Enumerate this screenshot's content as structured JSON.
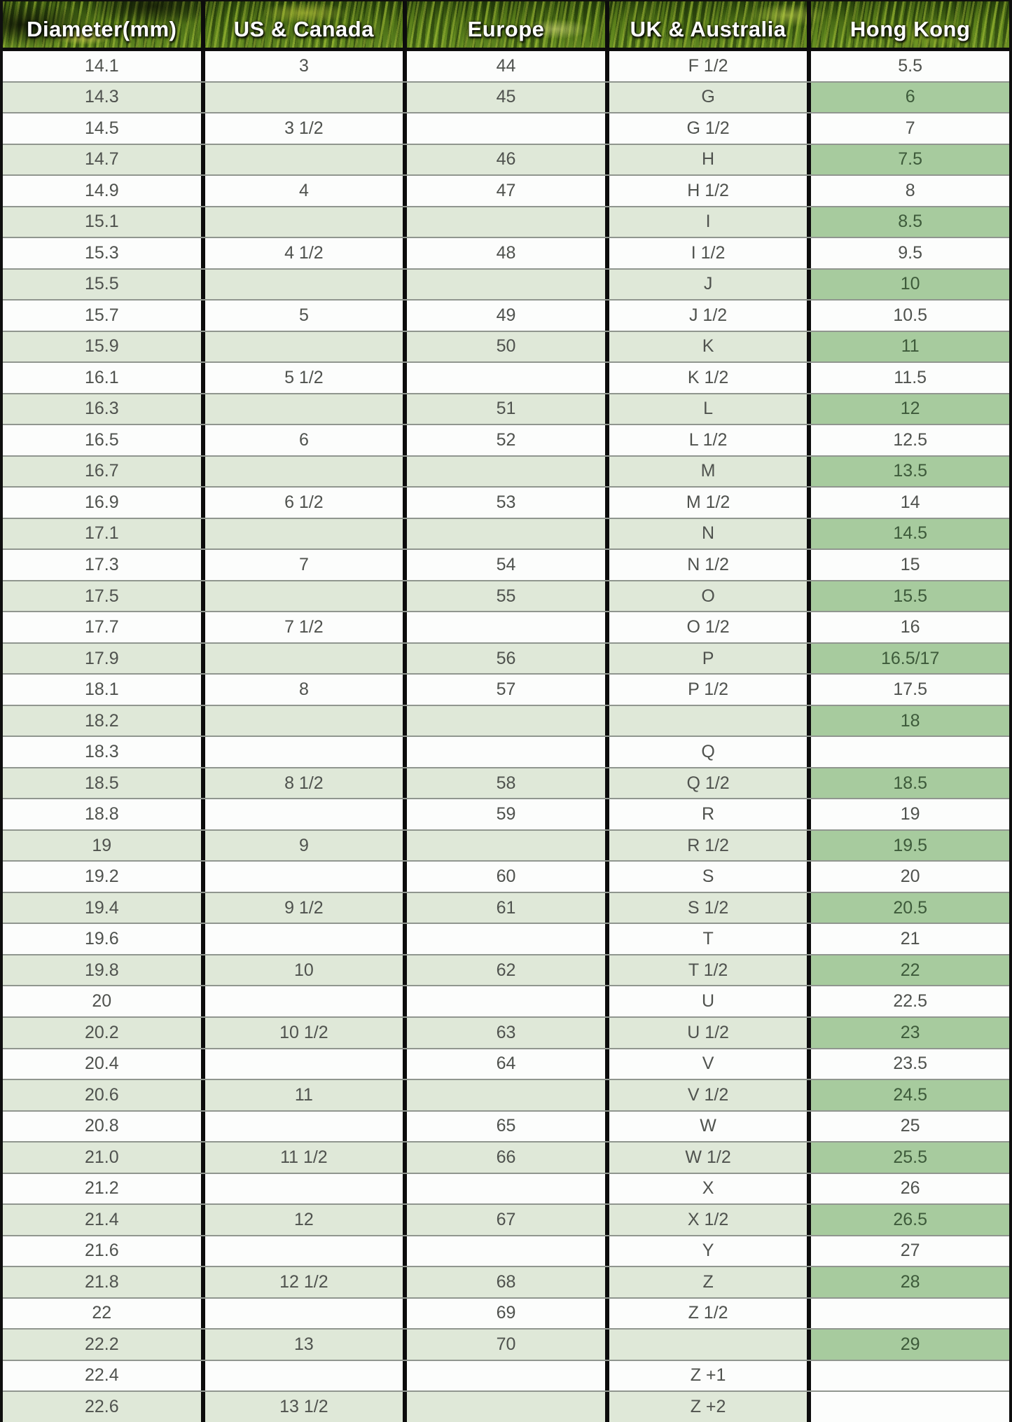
{
  "chart_data": {
    "type": "table",
    "columns": [
      "Diameter(mm)",
      "US & Canada",
      "Europe",
      "UK & Australia",
      "Hong Kong"
    ],
    "rows": [
      [
        "14.1",
        "3",
        "44",
        "F 1/2",
        "5.5"
      ],
      [
        "14.3",
        "",
        "45",
        "G",
        "6"
      ],
      [
        "14.5",
        "3 1/2",
        "",
        "G 1/2",
        "7"
      ],
      [
        "14.7",
        "",
        "46",
        "H",
        "7.5"
      ],
      [
        "14.9",
        "4",
        "47",
        "H 1/2",
        "8"
      ],
      [
        "15.1",
        "",
        "",
        "I",
        "8.5"
      ],
      [
        "15.3",
        "4 1/2",
        "48",
        "I 1/2",
        "9.5"
      ],
      [
        "15.5",
        "",
        "",
        "J",
        "10"
      ],
      [
        "15.7",
        "5",
        "49",
        "J 1/2",
        "10.5"
      ],
      [
        "15.9",
        "",
        "50",
        "K",
        "11"
      ],
      [
        "16.1",
        "5 1/2",
        "",
        "K 1/2",
        "11.5"
      ],
      [
        "16.3",
        "",
        "51",
        "L",
        "12"
      ],
      [
        "16.5",
        "6",
        "52",
        "L 1/2",
        "12.5"
      ],
      [
        "16.7",
        "",
        "",
        "M",
        "13.5"
      ],
      [
        "16.9",
        "6 1/2",
        "53",
        "M 1/2",
        "14"
      ],
      [
        "17.1",
        "",
        "",
        "N",
        "14.5"
      ],
      [
        "17.3",
        "7",
        "54",
        "N 1/2",
        "15"
      ],
      [
        "17.5",
        "",
        "55",
        "O",
        "15.5"
      ],
      [
        "17.7",
        "7 1/2",
        "",
        "O 1/2",
        "16"
      ],
      [
        "17.9",
        "",
        "56",
        "P",
        "16.5/17"
      ],
      [
        "18.1",
        "8",
        "57",
        "P 1/2",
        "17.5"
      ],
      [
        "18.2",
        "",
        "",
        "",
        "18"
      ],
      [
        "18.3",
        "",
        "",
        "Q",
        ""
      ],
      [
        "18.5",
        "8 1/2",
        "58",
        "Q 1/2",
        "18.5"
      ],
      [
        "18.8",
        "",
        "59",
        "R",
        "19"
      ],
      [
        "19",
        "9",
        "",
        "R 1/2",
        "19.5"
      ],
      [
        "19.2",
        "",
        "60",
        "S",
        "20"
      ],
      [
        "19.4",
        "9 1/2",
        "61",
        "S 1/2",
        "20.5"
      ],
      [
        "19.6",
        "",
        "",
        "T",
        "21"
      ],
      [
        "19.8",
        "10",
        "62",
        "T 1/2",
        "22"
      ],
      [
        "20",
        "",
        "",
        "U",
        "22.5"
      ],
      [
        "20.2",
        "10 1/2",
        "63",
        "U 1/2",
        "23"
      ],
      [
        "20.4",
        "",
        "64",
        "V",
        "23.5"
      ],
      [
        "20.6",
        "11",
        "",
        "V 1/2",
        "24.5"
      ],
      [
        "20.8",
        "",
        "65",
        "W",
        "25"
      ],
      [
        "21.0",
        "11 1/2",
        "66",
        "W 1/2",
        "25.5"
      ],
      [
        "21.2",
        "",
        "",
        "X",
        "26"
      ],
      [
        "21.4",
        "12",
        "67",
        "X 1/2",
        "26.5"
      ],
      [
        "21.6",
        "",
        "",
        "Y",
        "27"
      ],
      [
        "21.8",
        "12 1/2",
        "68",
        "Z",
        "28"
      ],
      [
        "22",
        "",
        "69",
        "Z 1/2",
        ""
      ],
      [
        "22.2",
        "13",
        "70",
        "",
        "29"
      ],
      [
        "22.4",
        "",
        "",
        "Z +1",
        ""
      ],
      [
        "22.6",
        "13 1/2",
        "",
        "Z +2",
        ""
      ]
    ]
  },
  "colors": {
    "row_green": "#dfe8d8",
    "hk_highlight_green": "#a7cb9e",
    "header_text": "#ffffff",
    "cell_text": "#4f524e",
    "divider_black": "#0c0c0c",
    "row_separator_gray": "#90968f"
  }
}
